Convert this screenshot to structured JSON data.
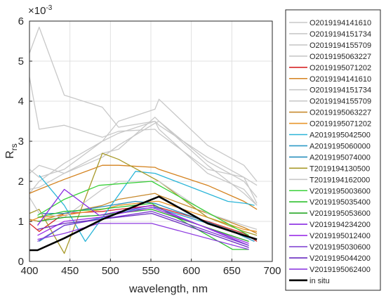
{
  "chart_data": {
    "type": "line",
    "xlabel": "wavelength, nm",
    "ylabel": "R",
    "ylabel_subscript": "rs",
    "y_exponent_label": "×10",
    "y_exponent_power": "-3",
    "xlim": [
      400,
      700
    ],
    "ylim": [
      0,
      6
    ],
    "x_ticks": [
      400,
      450,
      500,
      550,
      600,
      650,
      700
    ],
    "y_ticks": [
      0,
      1,
      2,
      3,
      4,
      5,
      6
    ],
    "grid": true,
    "legend_position": "right-outside",
    "series": [
      {
        "name": "O2019194141610",
        "color": "#c8c8c8",
        "x": [
          400,
          412,
          443,
          490,
          510,
          555,
          560,
          620,
          665,
          681
        ],
        "y": [
          5.2,
          5.85,
          4.15,
          3.85,
          3.35,
          3.5,
          3.3,
          2.2,
          1.8,
          1.4
        ]
      },
      {
        "name": "O2019194151734",
        "color": "#c8c8c8",
        "x": [
          400,
          412,
          443,
          490,
          510,
          555,
          560,
          620,
          665,
          681
        ],
        "y": [
          4.6,
          3.3,
          3.4,
          3.1,
          3.25,
          3.3,
          3.2,
          2.3,
          2.1,
          1.45
        ]
      },
      {
        "name": "O2019194155709",
        "color": "#c8c8c8",
        "x": [
          400,
          412,
          443,
          490,
          510,
          555,
          560,
          620,
          665,
          681
        ],
        "y": [
          2.2,
          2.4,
          2.2,
          2.7,
          2.8,
          3.6,
          3.5,
          2.5,
          2.0,
          1.6
        ]
      },
      {
        "name": "O2019195063227",
        "color": "#c8c8c8",
        "x": [
          400,
          412,
          443,
          490,
          510,
          555,
          560,
          620,
          665,
          681
        ],
        "y": [
          1.7,
          2.0,
          2.45,
          3.0,
          3.5,
          3.8,
          4.05,
          2.9,
          2.4,
          2.0
        ]
      },
      {
        "name": "O2019195071202",
        "color": "#d62728",
        "x": [
          400,
          412,
          443,
          490,
          510,
          555,
          560,
          620,
          665,
          681
        ],
        "y": [
          0.95,
          0.75,
          1.2,
          1.25,
          1.3,
          1.4,
          1.35,
          1.0,
          0.7,
          0.5
        ]
      },
      {
        "name": "O2019194141610",
        "color": "#d4821e",
        "x": [
          400,
          412,
          443,
          490,
          510,
          555,
          560,
          620,
          665,
          681
        ],
        "y": [
          1.7,
          1.8,
          2.05,
          2.4,
          2.4,
          2.35,
          2.3,
          1.9,
          1.5,
          1.3
        ]
      },
      {
        "name": "O2019194151734",
        "color": "#c8c8c8",
        "x": [
          400,
          412,
          443,
          490,
          510,
          555,
          560,
          620,
          665,
          681
        ],
        "y": [
          1.8,
          1.85,
          2.2,
          2.6,
          2.9,
          3.45,
          3.5,
          2.4,
          1.7,
          1.4
        ]
      },
      {
        "name": "O2019194155709",
        "color": "#c8c8c8",
        "x": [
          400,
          412,
          443,
          490,
          510,
          555,
          560,
          620,
          665,
          681
        ],
        "y": [
          2.3,
          2.1,
          2.3,
          3.0,
          3.2,
          3.5,
          3.4,
          2.6,
          2.1,
          1.9
        ]
      },
      {
        "name": "O2019195063227",
        "color": "#c88a2e",
        "x": [
          400,
          412,
          443,
          490,
          510,
          555,
          560,
          620,
          665,
          681
        ],
        "y": [
          1.05,
          1.0,
          1.2,
          1.4,
          1.55,
          1.7,
          1.65,
          1.2,
          0.85,
          0.7
        ]
      },
      {
        "name": "O2019195071202",
        "color": "#e8952a",
        "x": [
          400,
          412,
          443,
          490,
          510,
          555,
          560,
          620,
          665,
          681
        ],
        "y": [
          1.0,
          1.1,
          1.15,
          1.3,
          1.4,
          1.5,
          1.5,
          1.1,
          0.8,
          0.75
        ]
      },
      {
        "name": "A2019195042500",
        "color": "#2bb5d8",
        "x": [
          412,
          443,
          469,
          531,
          555,
          645,
          667,
          678
        ],
        "y": [
          2.15,
          1.4,
          0.5,
          2.25,
          2.2,
          1.5,
          1.45,
          1.4
        ]
      },
      {
        "name": "A2019195060000",
        "color": "#2e9ac8",
        "x": [
          412,
          443,
          469,
          531,
          555,
          645,
          667,
          678
        ],
        "y": [
          0.5,
          0.9,
          1.0,
          1.3,
          1.35,
          0.8,
          0.6,
          0.5
        ]
      },
      {
        "name": "A2019195074000",
        "color": "#2a8fbd",
        "x": [
          412,
          443,
          469,
          531,
          555,
          645,
          667,
          678
        ],
        "y": [
          1.2,
          1.2,
          1.3,
          1.5,
          1.45,
          0.8,
          0.65,
          0.55
        ]
      },
      {
        "name": "T2019194130500",
        "color": "#a89a2a",
        "x": [
          400,
          412,
          443,
          490,
          510,
          560,
          620,
          665,
          681
        ],
        "y": [
          1.2,
          1.3,
          0.2,
          2.7,
          2.55,
          2.0,
          1.1,
          0.75,
          0.65
        ]
      },
      {
        "name": "T2019194162000",
        "color": "#c8c8c8",
        "x": [
          400,
          412,
          443,
          490,
          510,
          560,
          620,
          665,
          681
        ],
        "y": [
          1.6,
          1.2,
          1.1,
          1.8,
          2.0,
          2.0,
          1.2,
          0.9,
          0.8
        ]
      },
      {
        "name": "V2019195003600",
        "color": "#3ad13a",
        "x": [
          410,
          443,
          486,
          551,
          671
        ],
        "y": [
          1.15,
          1.55,
          1.9,
          2.0,
          0.65
        ]
      },
      {
        "name": "V2019195035400",
        "color": "#2ec02e",
        "x": [
          410,
          443,
          486,
          551,
          651,
          671
        ],
        "y": [
          1.1,
          1.25,
          1.3,
          1.45,
          0.3,
          0.3
        ]
      },
      {
        "name": "V2019195053600",
        "color": "#28a828",
        "x": [
          410,
          443,
          486,
          551,
          671
        ],
        "y": [
          1.0,
          1.1,
          1.15,
          1.3,
          0.5
        ]
      },
      {
        "name": "V2019194234200",
        "color": "#8a2be2",
        "x": [
          410,
          443,
          486,
          551,
          671
        ],
        "y": [
          0.9,
          1.8,
          1.15,
          1.4,
          0.4
        ]
      },
      {
        "name": "V2019195012400",
        "color": "#9b30e8",
        "x": [
          410,
          443,
          486,
          551,
          671
        ],
        "y": [
          0.65,
          1.0,
          1.1,
          1.35,
          0.45
        ]
      },
      {
        "name": "V2019195030600",
        "color": "#7a3ad0",
        "x": [
          410,
          443,
          486,
          551,
          671
        ],
        "y": [
          0.5,
          0.9,
          1.05,
          1.25,
          0.4
        ]
      },
      {
        "name": "V2019195044200",
        "color": "#6a2bc0",
        "x": [
          410,
          443,
          486,
          551,
          671
        ],
        "y": [
          0.8,
          0.95,
          1.05,
          1.2,
          0.35
        ]
      },
      {
        "name": "V2019195062400",
        "color": "#8e3ce0",
        "x": [
          410,
          443,
          486,
          551,
          671
        ],
        "y": [
          0.55,
          0.7,
          0.95,
          0.95,
          0.3
        ]
      },
      {
        "name": "in situ",
        "color": "#000000",
        "width": 2.6,
        "x": [
          400,
          410,
          443,
          490,
          560,
          620,
          665,
          681
        ],
        "y": [
          0.28,
          0.28,
          0.58,
          1.05,
          1.62,
          0.95,
          0.65,
          0.55
        ]
      }
    ]
  }
}
